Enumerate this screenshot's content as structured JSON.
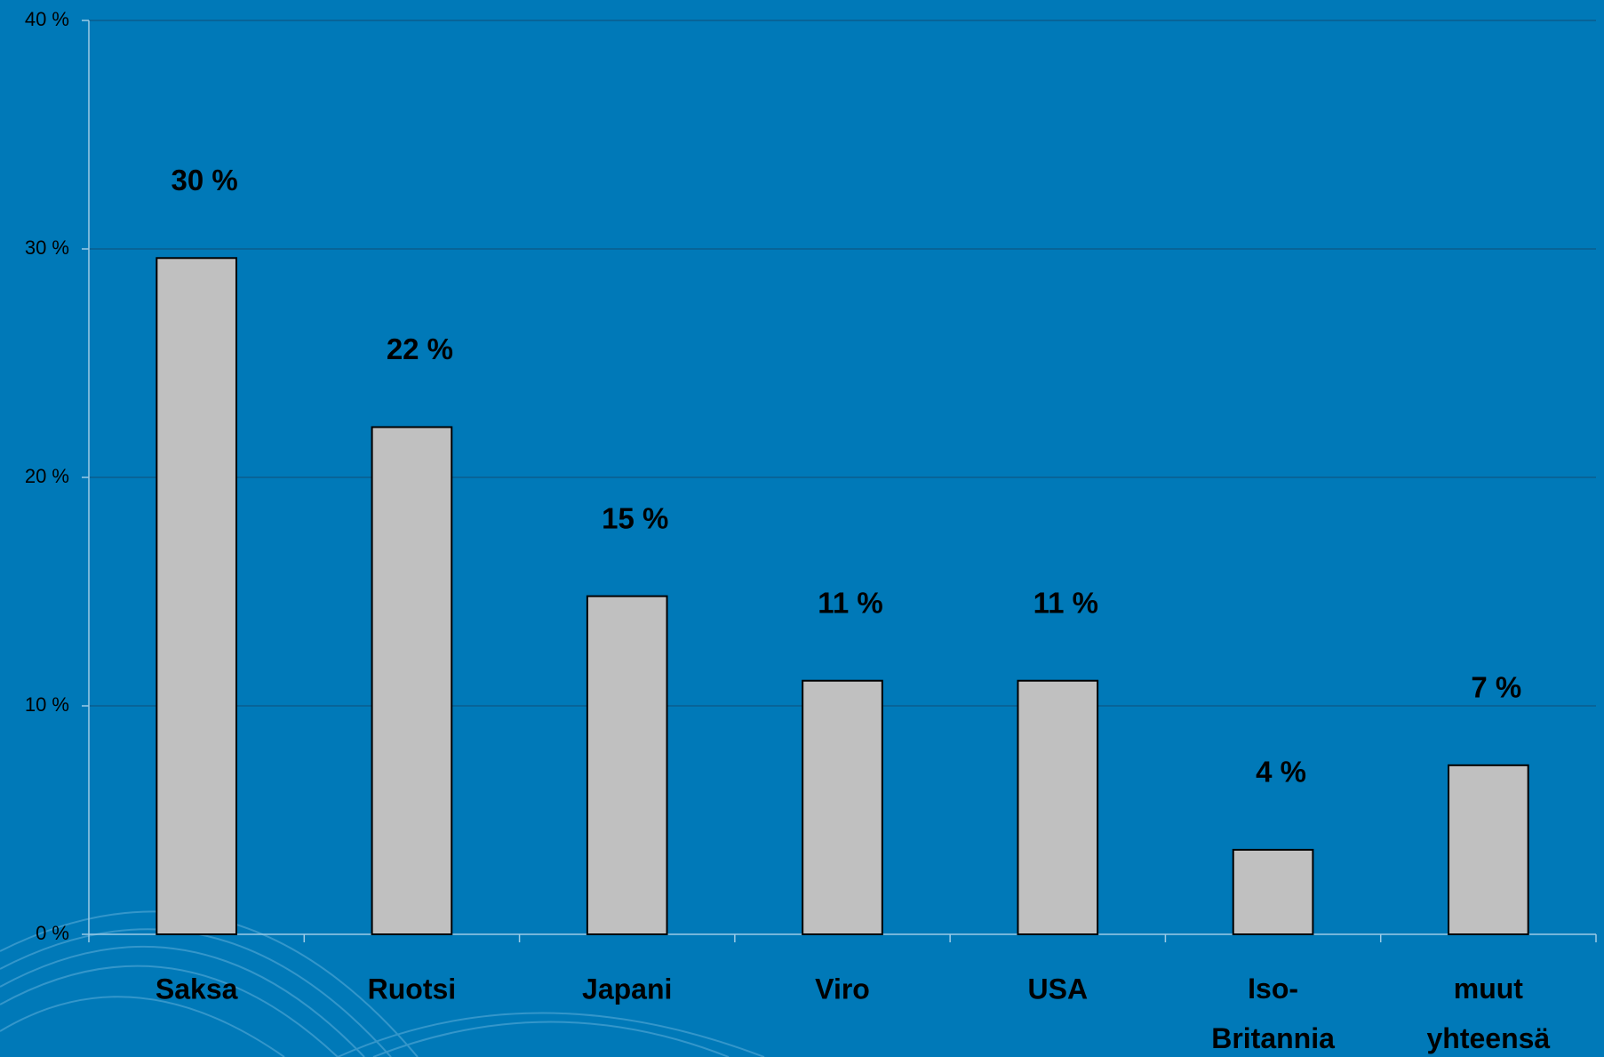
{
  "chart_data": {
    "type": "bar",
    "categories": [
      "Saksa",
      "Ruotsi",
      "Japani",
      "Viro",
      "USA",
      "Iso-Britannia",
      "muut yhteensä"
    ],
    "values": [
      29.6,
      22.2,
      14.8,
      11.1,
      11.1,
      3.7,
      7.4
    ],
    "value_labels": [
      "30 %",
      "22 %",
      "15 %",
      "11 %",
      "11 %",
      "4 %",
      "7 %"
    ],
    "color": "#c0c0c0",
    "ylim": [
      0,
      40
    ],
    "yticks": [
      {
        "value": 0,
        "label": "0 %"
      },
      {
        "value": 10,
        "label": "10 %"
      },
      {
        "value": 20,
        "label": "20 %"
      },
      {
        "value": 30,
        "label": "30 %"
      },
      {
        "value": 40,
        "label": "40 %"
      }
    ],
    "grid": true
  }
}
